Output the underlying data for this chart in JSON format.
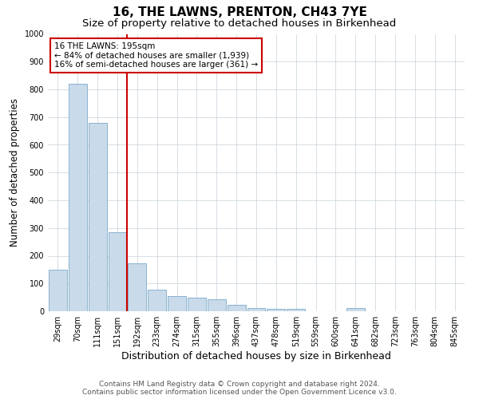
{
  "title": "16, THE LAWNS, PRENTON, CH43 7YE",
  "subtitle": "Size of property relative to detached houses in Birkenhead",
  "xlabel": "Distribution of detached houses by size in Birkenhead",
  "ylabel": "Number of detached properties",
  "categories": [
    "29sqm",
    "70sqm",
    "111sqm",
    "151sqm",
    "192sqm",
    "233sqm",
    "274sqm",
    "315sqm",
    "355sqm",
    "396sqm",
    "437sqm",
    "478sqm",
    "519sqm",
    "559sqm",
    "600sqm",
    "641sqm",
    "682sqm",
    "723sqm",
    "763sqm",
    "804sqm",
    "845sqm"
  ],
  "values": [
    150,
    820,
    680,
    285,
    172,
    78,
    55,
    50,
    42,
    22,
    12,
    10,
    10,
    0,
    0,
    12,
    0,
    0,
    0,
    0,
    0
  ],
  "bar_color": "#c9daea",
  "bar_edge_color": "#7aaac8",
  "vline_color": "#cc0000",
  "vline_pos": 3.5,
  "ylim": [
    0,
    1000
  ],
  "yticks": [
    0,
    100,
    200,
    300,
    400,
    500,
    600,
    700,
    800,
    900,
    1000
  ],
  "annotation_line1": "16 THE LAWNS: 195sqm",
  "annotation_line2": "← 84% of detached houses are smaller (1,939)",
  "annotation_line3": "16% of semi-detached houses are larger (361) →",
  "annotation_box_facecolor": "#ffffff",
  "annotation_box_edgecolor": "#cc0000",
  "footer1": "Contains HM Land Registry data © Crown copyright and database right 2024.",
  "footer2": "Contains public sector information licensed under the Open Government Licence v3.0.",
  "title_fontsize": 11,
  "subtitle_fontsize": 9.5,
  "axis_label_fontsize": 8.5,
  "tick_fontsize": 7,
  "annotation_fontsize": 7.5,
  "footer_fontsize": 6.5
}
